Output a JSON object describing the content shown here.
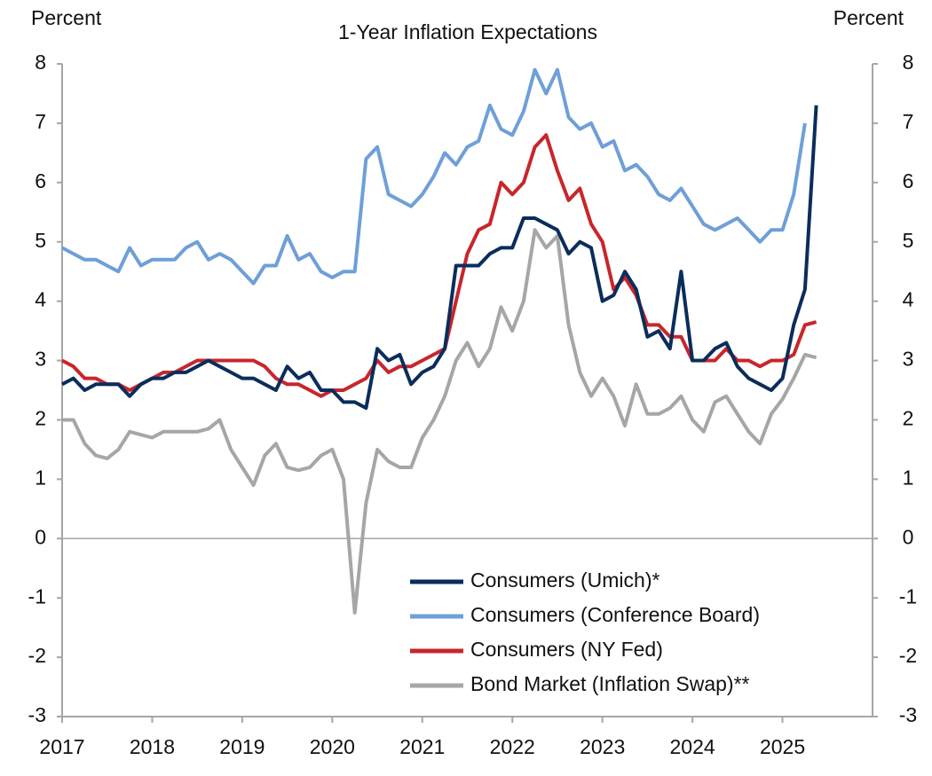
{
  "chart_data": {
    "type": "line",
    "title": "1-Year Inflation Expectations",
    "y_label": "Percent",
    "y2_label": "Percent",
    "x": [
      2017,
      2017.125,
      2017.25,
      2017.375,
      2017.5,
      2017.625,
      2017.75,
      2017.875,
      2018,
      2018.125,
      2018.25,
      2018.375,
      2018.5,
      2018.625,
      2018.75,
      2018.875,
      2019,
      2019.125,
      2019.25,
      2019.375,
      2019.5,
      2019.625,
      2019.75,
      2019.875,
      2020,
      2020.125,
      2020.25,
      2020.375,
      2020.5,
      2020.625,
      2020.75,
      2020.875,
      2021,
      2021.125,
      2021.25,
      2021.375,
      2021.5,
      2021.625,
      2021.75,
      2021.875,
      2022,
      2022.125,
      2022.25,
      2022.375,
      2022.5,
      2022.625,
      2022.75,
      2022.875,
      2023,
      2023.125,
      2023.25,
      2023.375,
      2023.5,
      2023.625,
      2023.75,
      2023.875,
      2024,
      2024.125,
      2024.25,
      2024.375,
      2024.5,
      2024.625,
      2024.75,
      2024.875,
      2025,
      2025.125,
      2025.25,
      2025.375
    ],
    "series": [
      {
        "name": "Consumers (Umich)*",
        "color": "#0b2d5b",
        "values": [
          2.6,
          2.7,
          2.5,
          2.6,
          2.6,
          2.6,
          2.4,
          2.6,
          2.7,
          2.7,
          2.8,
          2.8,
          2.9,
          3.0,
          2.9,
          2.8,
          2.7,
          2.7,
          2.6,
          2.5,
          2.9,
          2.7,
          2.8,
          2.5,
          2.5,
          2.3,
          2.3,
          2.2,
          3.2,
          3.0,
          3.1,
          2.6,
          2.8,
          2.9,
          3.2,
          4.6,
          4.6,
          4.6,
          4.8,
          4.9,
          4.9,
          5.4,
          5.4,
          5.3,
          5.2,
          4.8,
          5.0,
          4.9,
          4.0,
          4.1,
          4.5,
          4.2,
          3.4,
          3.5,
          3.2,
          4.5,
          3.0,
          3.0,
          3.2,
          3.3,
          2.9,
          2.7,
          2.6,
          2.5,
          2.7,
          3.6,
          4.2,
          7.3
        ]
      },
      {
        "name": "Consumers (Conference Board)",
        "color": "#6f9fd8",
        "values": [
          4.9,
          4.8,
          4.7,
          4.7,
          4.6,
          4.5,
          4.9,
          4.6,
          4.7,
          4.7,
          4.7,
          4.9,
          5.0,
          4.7,
          4.8,
          4.7,
          4.5,
          4.3,
          4.6,
          4.6,
          5.1,
          4.7,
          4.8,
          4.5,
          4.4,
          4.5,
          4.5,
          6.4,
          6.6,
          5.8,
          5.7,
          5.6,
          5.8,
          6.1,
          6.5,
          6.3,
          6.6,
          6.7,
          7.3,
          6.9,
          6.8,
          7.2,
          7.9,
          7.5,
          7.9,
          7.1,
          6.9,
          7.0,
          6.6,
          6.7,
          6.2,
          6.3,
          6.1,
          5.8,
          5.7,
          5.9,
          5.6,
          5.3,
          5.2,
          5.3,
          5.4,
          5.2,
          5.0,
          5.2,
          5.2,
          5.8,
          7.0,
          null
        ]
      },
      {
        "name": "Consumers (NY Fed)",
        "color": "#c8262c",
        "values": [
          3.0,
          2.9,
          2.7,
          2.7,
          2.6,
          2.6,
          2.5,
          2.6,
          2.7,
          2.8,
          2.8,
          2.9,
          3.0,
          3.0,
          3.0,
          3.0,
          3.0,
          3.0,
          2.9,
          2.7,
          2.6,
          2.6,
          2.5,
          2.4,
          2.5,
          2.5,
          2.6,
          2.7,
          3.0,
          2.8,
          2.9,
          2.9,
          3.0,
          3.1,
          3.2,
          4.0,
          4.8,
          5.2,
          5.3,
          6.0,
          5.8,
          6.0,
          6.6,
          6.8,
          6.2,
          5.7,
          5.9,
          5.3,
          5.0,
          4.2,
          4.4,
          4.1,
          3.6,
          3.6,
          3.4,
          3.4,
          3.0,
          3.0,
          3.0,
          3.2,
          3.0,
          3.0,
          2.9,
          3.0,
          3.0,
          3.1,
          3.6,
          3.65
        ]
      },
      {
        "name": "Bond Market (Inflation Swap)**",
        "color": "#a6a6a6",
        "values": [
          2.0,
          2.0,
          1.6,
          1.4,
          1.35,
          1.5,
          1.8,
          1.75,
          1.7,
          1.8,
          1.8,
          1.8,
          1.8,
          1.85,
          2.0,
          1.5,
          1.2,
          0.9,
          1.4,
          1.6,
          1.2,
          1.15,
          1.2,
          1.4,
          1.5,
          1.0,
          -1.25,
          0.6,
          1.5,
          1.3,
          1.2,
          1.2,
          1.7,
          2.0,
          2.4,
          3.0,
          3.3,
          2.9,
          3.2,
          3.9,
          3.5,
          4.0,
          5.2,
          4.9,
          5.1,
          3.6,
          2.8,
          2.4,
          2.7,
          2.4,
          1.9,
          2.6,
          2.1,
          2.1,
          2.2,
          2.4,
          2.0,
          1.8,
          2.3,
          2.4,
          2.1,
          1.8,
          1.6,
          2.1,
          2.35,
          2.7,
          3.1,
          3.05
        ]
      }
    ],
    "xlim": [
      2017,
      2026
    ],
    "xticks": [
      2017,
      2018,
      2019,
      2020,
      2021,
      2022,
      2023,
      2024,
      2025
    ],
    "ylim": [
      -3,
      8
    ],
    "yticks": [
      -3,
      -2,
      -1,
      0,
      1,
      2,
      3,
      4,
      5,
      6,
      7,
      8
    ],
    "y2lim": [
      -3,
      8
    ],
    "y2ticks": [
      -3,
      -2,
      -1,
      0,
      1,
      2,
      3,
      4,
      5,
      6,
      7,
      8
    ],
    "legend": "lower right"
  }
}
